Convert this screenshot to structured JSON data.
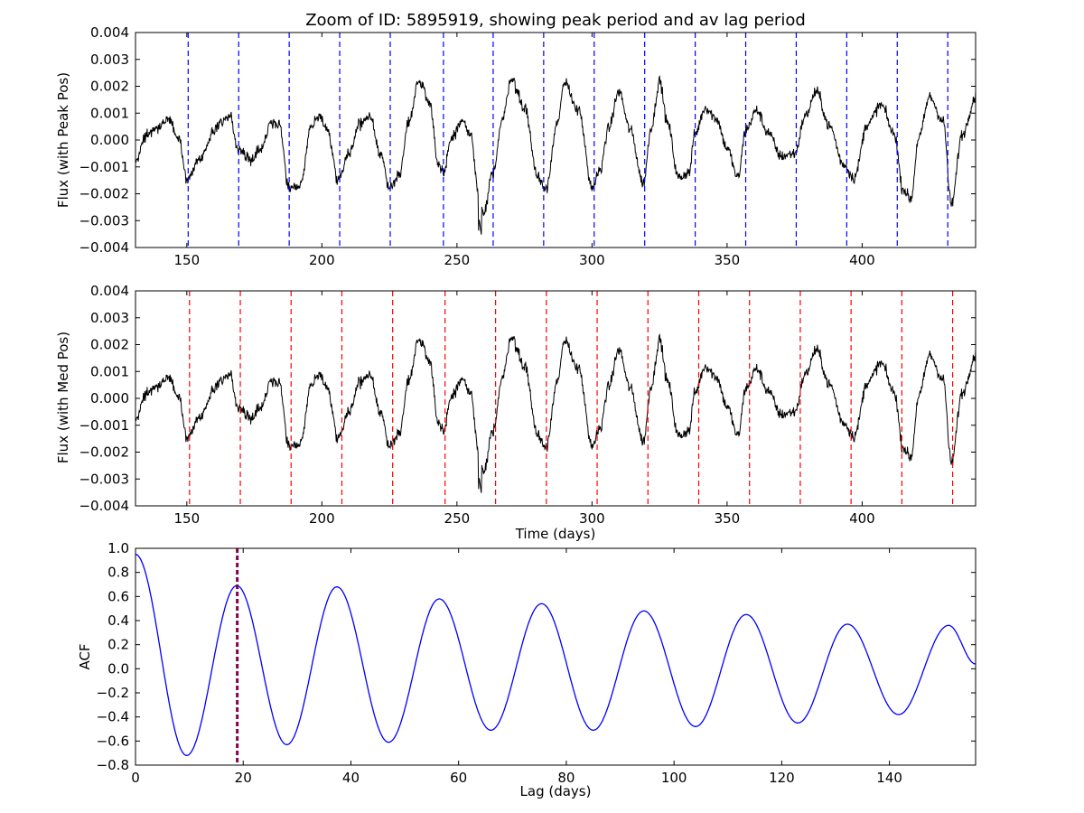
{
  "title": "Zoom of ID: 5895919, showing peak period and av lag period",
  "colors": {
    "flux": "#000000",
    "peak_lines": "#0000ff",
    "med_lines": "#ff0000",
    "acf": "#0000ff",
    "acf_peak_line": "#800000",
    "acf_lag_line": "#800080"
  },
  "chart_data": [
    {
      "type": "line",
      "ylabel": "Flux (with Peak Pos)",
      "xlim": [
        131,
        442
      ],
      "ylim": [
        -0.004,
        0.004
      ],
      "xticks": [
        150,
        200,
        250,
        300,
        350,
        400
      ],
      "xtick_labels": [
        "150",
        "200",
        "250",
        "300",
        "350",
        "400"
      ],
      "yticks": [
        -0.004,
        -0.003,
        -0.002,
        -0.001,
        0.0,
        0.001,
        0.002,
        0.003,
        0.004
      ],
      "ytick_labels": [
        "−0.004",
        "−0.003",
        "−0.002",
        "−0.001",
        "0.000",
        "0.001",
        "0.002",
        "0.003",
        "0.004"
      ],
      "series": [
        {
          "x": [
            131,
            135,
            140,
            143,
            147,
            150,
            155,
            160,
            163,
            166,
            169,
            174,
            178,
            181,
            184,
            188,
            192,
            196,
            199,
            202,
            206,
            210,
            214,
            218,
            222,
            225,
            229,
            232,
            236,
            240,
            243,
            245,
            248,
            252,
            255,
            258,
            260,
            263,
            267,
            270,
            275,
            280,
            283,
            287,
            290,
            295,
            300,
            303,
            306,
            310,
            314,
            319,
            322,
            325,
            328,
            332,
            336,
            338,
            342,
            346,
            350,
            354,
            357,
            361,
            365,
            370,
            375,
            379,
            383,
            388,
            393,
            397,
            402,
            407,
            412,
            415,
            418,
            421,
            425,
            430,
            433,
            437,
            442
          ],
          "y": [
            -0.0008,
            0.0002,
            0.0005,
            0.0008,
            0.0001,
            -0.0014,
            -0.0007,
            0.0003,
            0.0007,
            0.0009,
            -0.0004,
            -0.0007,
            -0.0002,
            0.0007,
            0.0006,
            -0.0018,
            -0.0017,
            0.0005,
            0.0009,
            0.0004,
            -0.0015,
            -0.0005,
            0.0006,
            0.0008,
            -0.0006,
            -0.0018,
            -0.0012,
            0.0007,
            0.0022,
            0.0014,
            -0.0009,
            -0.0013,
            0.0001,
            0.0007,
            0.0002,
            -0.002,
            -0.0028,
            -0.0013,
            0.0008,
            0.0023,
            0.0012,
            -0.0014,
            -0.0018,
            0.0006,
            0.0021,
            0.0011,
            -0.0018,
            -0.0011,
            0.0004,
            0.0018,
            0.0004,
            -0.0016,
            0.0005,
            0.0022,
            0.0006,
            -0.0014,
            -0.0012,
            0.0002,
            0.0012,
            0.0008,
            -0.0003,
            -0.0014,
            0.0004,
            0.0011,
            0.0003,
            -0.0006,
            -0.0005,
            0.0009,
            0.0018,
            0.0005,
            -0.0009,
            -0.0014,
            0.0006,
            0.0013,
            0.0002,
            -0.0018,
            -0.0022,
            0.0001,
            0.0016,
            0.0007,
            -0.0024,
            0.0002,
            0.0016
          ]
        }
      ],
      "vlines": [
        150.5,
        169.2,
        187.9,
        206.6,
        225.3,
        245.0,
        263.4,
        282.1,
        300.8,
        319.5,
        338.2,
        356.9,
        375.6,
        394.3,
        413.0,
        431.7
      ],
      "vline_color": "#0000ff"
    },
    {
      "type": "line",
      "ylabel": "Flux (with Med Pos)",
      "xlabel": "Time (days)",
      "xlim": [
        131,
        442
      ],
      "ylim": [
        -0.004,
        0.004
      ],
      "xticks": [
        150,
        200,
        250,
        300,
        350,
        400
      ],
      "xtick_labels": [
        "150",
        "200",
        "250",
        "300",
        "350",
        "400"
      ],
      "yticks": [
        -0.004,
        -0.003,
        -0.002,
        -0.001,
        0.0,
        0.001,
        0.002,
        0.003,
        0.004
      ],
      "ytick_labels": [
        "−0.004",
        "−0.003",
        "−0.002",
        "−0.001",
        "0.000",
        "0.001",
        "0.002",
        "0.003",
        "0.004"
      ],
      "series": [
        {
          "x": [
            131,
            135,
            140,
            143,
            147,
            150,
            155,
            160,
            163,
            166,
            169,
            174,
            178,
            181,
            184,
            188,
            192,
            196,
            199,
            202,
            206,
            210,
            214,
            218,
            222,
            225,
            229,
            232,
            236,
            240,
            243,
            245,
            248,
            252,
            255,
            258,
            260,
            263,
            267,
            270,
            275,
            280,
            283,
            287,
            290,
            295,
            300,
            303,
            306,
            310,
            314,
            319,
            322,
            325,
            328,
            332,
            336,
            338,
            342,
            346,
            350,
            354,
            357,
            361,
            365,
            370,
            375,
            379,
            383,
            388,
            393,
            397,
            402,
            407,
            412,
            415,
            418,
            421,
            425,
            430,
            433,
            437,
            442
          ],
          "y": [
            -0.0008,
            0.0002,
            0.0005,
            0.0008,
            0.0001,
            -0.0014,
            -0.0007,
            0.0003,
            0.0007,
            0.0009,
            -0.0004,
            -0.0007,
            -0.0002,
            0.0007,
            0.0006,
            -0.0018,
            -0.0017,
            0.0005,
            0.0009,
            0.0004,
            -0.0015,
            -0.0005,
            0.0006,
            0.0008,
            -0.0006,
            -0.0018,
            -0.0012,
            0.0007,
            0.0022,
            0.0014,
            -0.0009,
            -0.0013,
            0.0001,
            0.0007,
            0.0002,
            -0.002,
            -0.0028,
            -0.0013,
            0.0008,
            0.0023,
            0.0012,
            -0.0014,
            -0.0018,
            0.0006,
            0.0021,
            0.0011,
            -0.0018,
            -0.0011,
            0.0004,
            0.0018,
            0.0004,
            -0.0016,
            0.0005,
            0.0022,
            0.0006,
            -0.0014,
            -0.0012,
            0.0002,
            0.0012,
            0.0008,
            -0.0003,
            -0.0014,
            0.0004,
            0.0011,
            0.0003,
            -0.0006,
            -0.0005,
            0.0009,
            0.0018,
            0.0005,
            -0.0009,
            -0.0014,
            0.0006,
            0.0013,
            0.0002,
            -0.0018,
            -0.0022,
            0.0001,
            0.0016,
            0.0007,
            -0.0024,
            0.0002,
            0.0016
          ]
        }
      ],
      "vlines": [
        151.0,
        169.8,
        188.6,
        207.4,
        226.2,
        245.6,
        264.3,
        283.1,
        301.9,
        320.7,
        339.5,
        358.3,
        377.1,
        395.9,
        414.7,
        433.5
      ],
      "vline_color": "#ff0000"
    },
    {
      "type": "line",
      "ylabel": "ACF",
      "xlabel": "Lag (days)",
      "xlim": [
        0,
        156
      ],
      "ylim": [
        -0.8,
        1.0
      ],
      "xticks": [
        0,
        20,
        40,
        60,
        80,
        100,
        120,
        140
      ],
      "xtick_labels": [
        "0",
        "20",
        "40",
        "60",
        "80",
        "100",
        "120",
        "140"
      ],
      "yticks": [
        -0.8,
        -0.6,
        -0.4,
        -0.2,
        0.0,
        0.2,
        0.4,
        0.6,
        0.8,
        1.0
      ],
      "ytick_labels": [
        "−0.8",
        "−0.6",
        "−0.4",
        "−0.2",
        "0.0",
        "0.2",
        "0.4",
        "0.6",
        "0.8",
        "1.0"
      ],
      "series": [
        {
          "x": [
            0.0,
            9.5,
            18.8,
            28.1,
            37.4,
            47.0,
            56.4,
            66.0,
            75.4,
            85.0,
            94.4,
            104.0,
            113.4,
            123.0,
            132.2,
            141.7,
            151.0,
            156.0
          ],
          "y": [
            0.95,
            -0.72,
            0.69,
            -0.63,
            0.68,
            -0.61,
            0.58,
            -0.51,
            0.54,
            -0.51,
            0.48,
            -0.48,
            0.45,
            -0.45,
            0.37,
            -0.38,
            0.36,
            0.04
          ]
        }
      ],
      "vlines": [
        18.8,
        19.0
      ],
      "vline_colors": [
        "#800000",
        "#800080"
      ]
    }
  ]
}
